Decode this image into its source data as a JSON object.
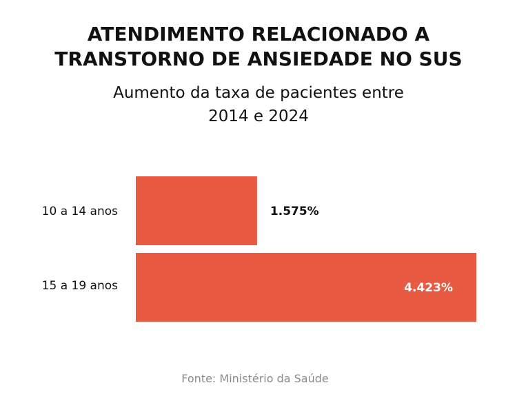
{
  "chart_data": {
    "type": "bar",
    "orientation": "horizontal",
    "title_lines": [
      "ATENDIMENTO RELACIONADO A",
      "TRANSTORNO DE ANSIEDADE NO SUS"
    ],
    "subtitle_lines": [
      "Aumento da taxa de pacientes entre",
      "2014 e 2024"
    ],
    "categories": [
      "10 a 14 anos",
      "15 a 19 anos"
    ],
    "values": [
      1575,
      4423
    ],
    "value_labels": [
      "1.575%",
      "4.423%"
    ],
    "xlim": [
      0,
      4423
    ],
    "grid": false,
    "source": "Fonte: Ministério da Saúde"
  },
  "colors": {
    "bar": "#e85a42",
    "label_outside": "#111111",
    "label_inside": "#ffffff",
    "source_text": "#8a8a8a"
  }
}
